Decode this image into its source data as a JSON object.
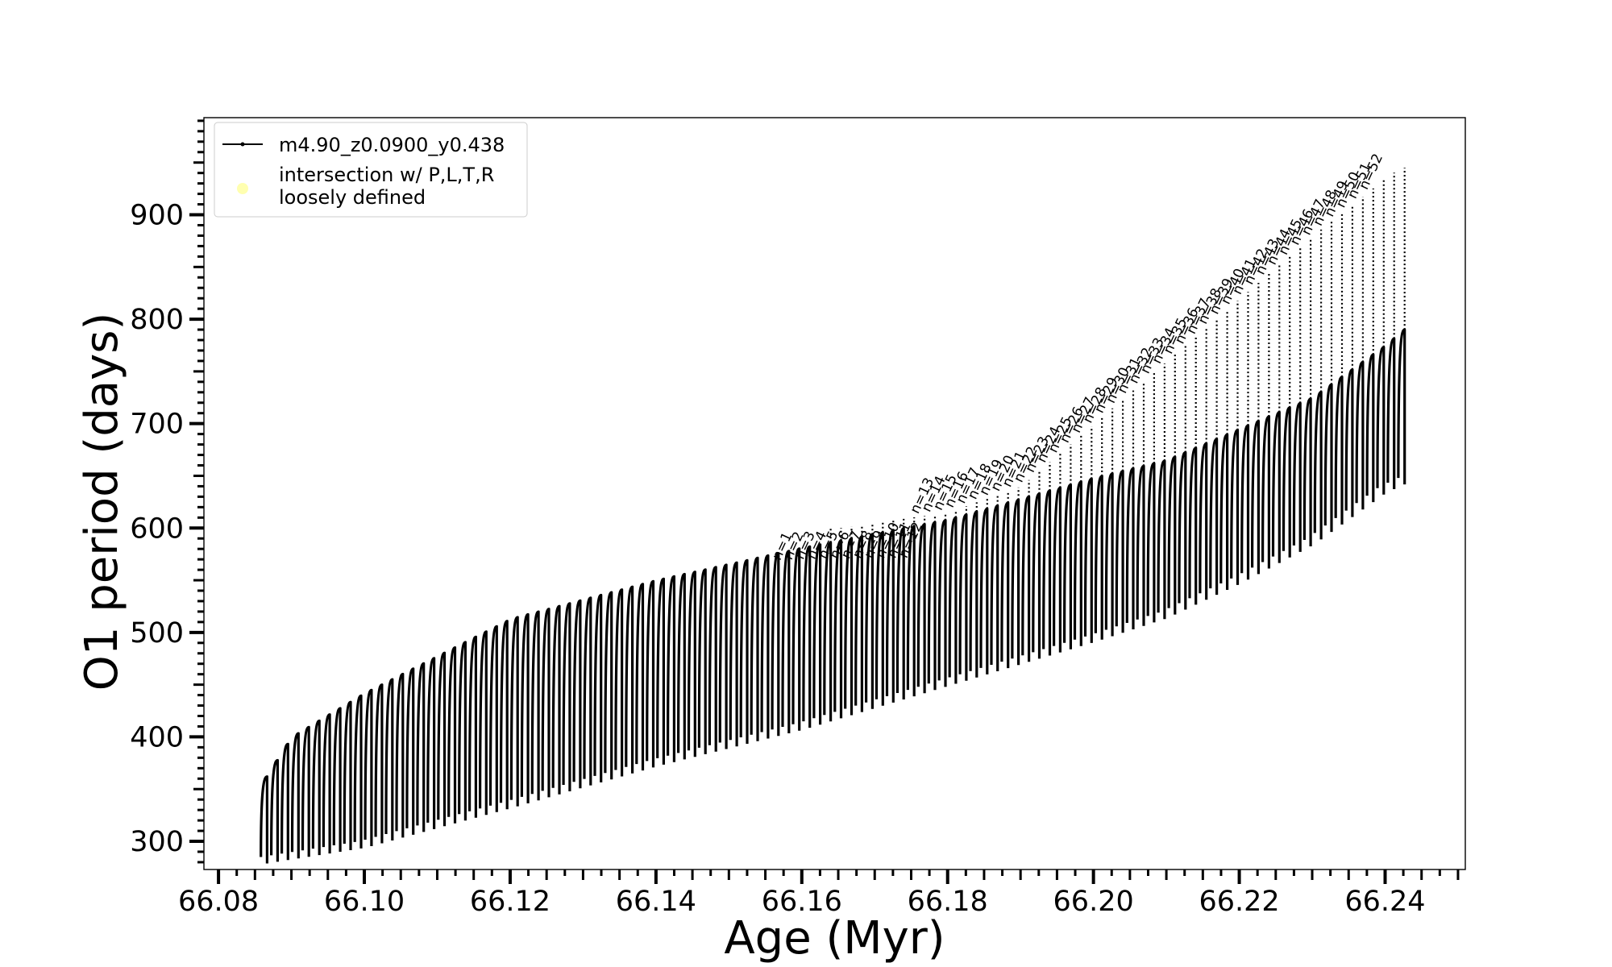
{
  "chart_data": {
    "type": "line",
    "xlabel": "Age (Myr)",
    "ylabel": "O1 period (days)",
    "xlim": [
      66.078,
      66.251
    ],
    "ylim": [
      273,
      993
    ],
    "x_ticks": [
      "66.08",
      "66.10",
      "66.12",
      "66.14",
      "66.16",
      "66.18",
      "66.20",
      "66.22",
      "66.24"
    ],
    "y_ticks": [
      "300",
      "400",
      "500",
      "600",
      "700",
      "800",
      "900"
    ],
    "grid": false,
    "legend_position": "upper-left",
    "legend": [
      {
        "label": "m4.90_z0.0900_y0.438",
        "marker": "line-dot",
        "color": "#000000"
      },
      {
        "label": "intersection w/ P,L,T,R\nloosely defined",
        "marker": "circle",
        "color": "#ffffb0"
      }
    ],
    "series": [
      {
        "name": "m4.90_z0.0900_y0.438",
        "color": "#000000",
        "description_points": {
          "x_start": 66.0865,
          "x_end": 66.2425,
          "loops": 110,
          "upper_envelope": [
            [
              66.0865,
              362
            ],
            [
              66.09,
              400
            ],
            [
              66.1,
              442
            ],
            [
              66.12,
              513
            ],
            [
              66.14,
              550
            ],
            [
              66.16,
              581
            ],
            [
              66.18,
              608
            ],
            [
              66.2,
              648
            ],
            [
              66.21,
              665
            ],
            [
              66.22,
              695
            ],
            [
              66.23,
              725
            ],
            [
              66.24,
              775
            ],
            [
              66.2425,
              790
            ]
          ],
          "lower_envelope": [
            [
              66.0865,
              285
            ],
            [
              66.1,
              300
            ],
            [
              66.12,
              338
            ],
            [
              66.14,
              378
            ],
            [
              66.16,
              413
            ],
            [
              66.18,
              455
            ],
            [
              66.2,
              497
            ],
            [
              66.21,
              520
            ],
            [
              66.22,
              553
            ],
            [
              66.23,
              590
            ],
            [
              66.24,
              640
            ],
            [
              66.2425,
              648
            ]
          ],
          "spike_peak_envelope": [
            [
              66.165,
              600
            ],
            [
              66.18,
              615
            ],
            [
              66.19,
              640
            ],
            [
              66.2,
              700
            ],
            [
              66.21,
              760
            ],
            [
              66.22,
              820
            ],
            [
              66.23,
              880
            ],
            [
              66.24,
              935
            ],
            [
              66.242,
              945
            ]
          ]
        }
      }
    ],
    "annotations": {
      "prefix": "n=",
      "x_start": 66.157,
      "count": 52,
      "x_end": 66.2375,
      "labels": [
        "1",
        "2",
        "3",
        "4",
        "5",
        "6",
        "7",
        "8",
        "9",
        "10",
        "11",
        "12",
        "13",
        "14",
        "15",
        "16",
        "17",
        "18",
        "19",
        "20",
        "21",
        "22",
        "23",
        "24",
        "25",
        "26",
        "27",
        "28",
        "29",
        "30",
        "31",
        "32",
        "33",
        "34",
        "35",
        "36",
        "37",
        "38",
        "39",
        "40",
        "41",
        "42",
        "43",
        "44",
        "45",
        "46",
        "47",
        "48",
        "49",
        "50",
        "51",
        "52"
      ]
    }
  }
}
